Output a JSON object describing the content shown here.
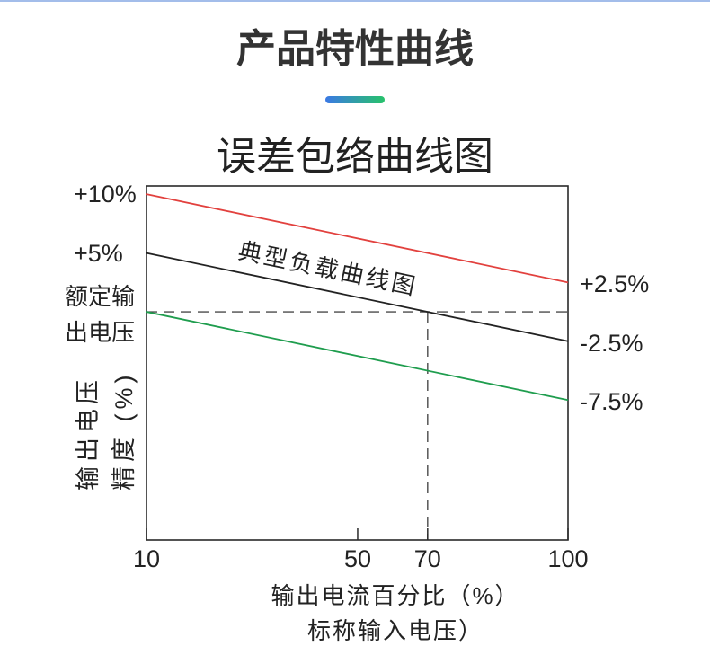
{
  "header": {
    "title": "产品特性曲线",
    "accent_gradient": [
      "#3b79e4",
      "#27c26b"
    ]
  },
  "colors": {
    "top_rule": "#a3bdea",
    "frame": "#2a2a2a",
    "reference_line": "#4a4a4a"
  },
  "chart_data": {
    "type": "line",
    "title": "误差包络曲线图",
    "xlabel_lines": [
      "输出电流百分比（%）",
      "标称输入电压）"
    ],
    "ylabel_lines": [
      "输出电压",
      "精度 (%)"
    ],
    "xlim": [
      10,
      100
    ],
    "ylim": [
      -19.4,
      10.7
    ],
    "grid": false,
    "legend": false,
    "x_ticks": [
      {
        "value": 10,
        "label": "10"
      },
      {
        "value": 50,
        "label": "50"
      },
      {
        "value": 70,
        "label": "70"
      },
      {
        "value": 100,
        "label": "100"
      }
    ],
    "left_labels": [
      {
        "value": 10,
        "label": "+10%"
      },
      {
        "value": 5,
        "label": "+5%"
      },
      {
        "value": 0,
        "label_lines": [
          "额定输",
          "出电压"
        ]
      }
    ],
    "right_labels": [
      {
        "value": 2.5,
        "label": "+2.5%"
      },
      {
        "value": -2.5,
        "label": "-2.5%"
      },
      {
        "value": -7.5,
        "label": "-7.5%"
      }
    ],
    "series": [
      {
        "color": "#e2413e",
        "x": [
          10,
          100
        ],
        "y": [
          10,
          2.5
        ]
      },
      {
        "name": "典型负载曲线图",
        "color": "#222222",
        "x": [
          10,
          100
        ],
        "y": [
          5,
          -2.5
        ]
      },
      {
        "color": "#1f9d4e",
        "x": [
          10,
          100
        ],
        "y": [
          0,
          -7.5
        ]
      }
    ],
    "h_reference": {
      "y": 0,
      "x_from": 10,
      "x_to": 100
    },
    "v_reference": {
      "x": 70,
      "y_from": 0,
      "y_to": -19.4
    }
  }
}
